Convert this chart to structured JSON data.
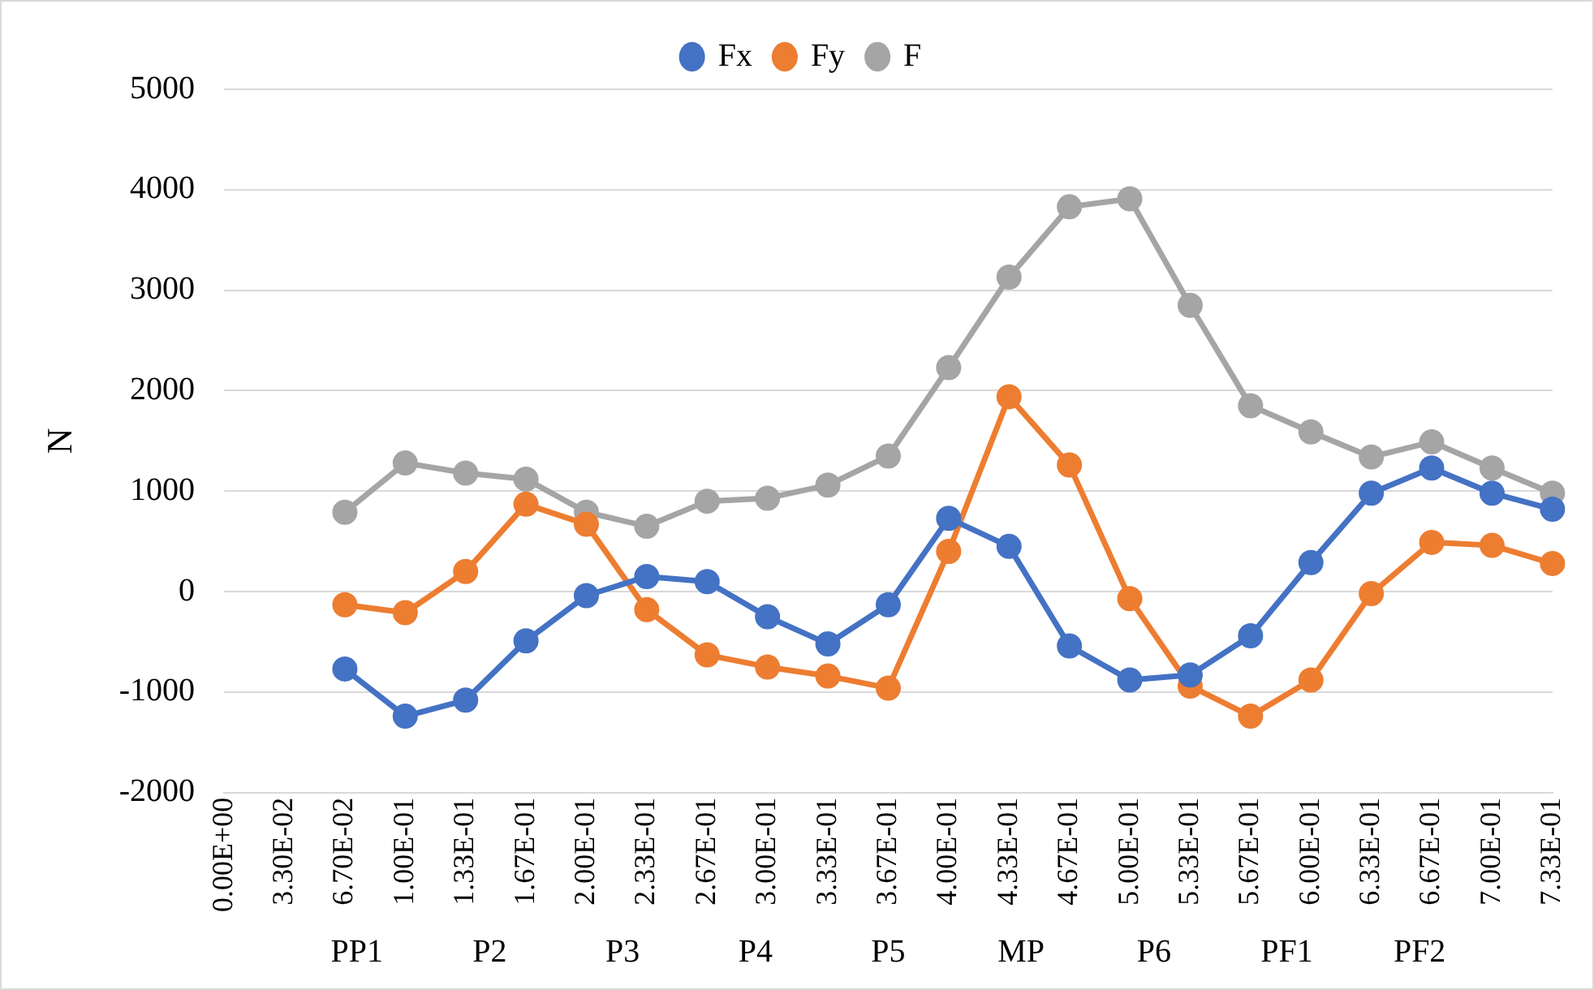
{
  "chart_data": {
    "type": "line",
    "ylabel": "N",
    "categories": [
      "0.00E+00",
      "3.30E-02",
      "6.70E-02",
      "1.00E-01",
      "1.33E-01",
      "1.67E-01",
      "2.00E-01",
      "2.33E-01",
      "2.67E-01",
      "3.00E-01",
      "3.33E-01",
      "3.67E-01",
      "4.00E-01",
      "4.33E-01",
      "4.67E-01",
      "5.00E-01",
      "5.33E-01",
      "5.67E-01",
      "6.00E-01",
      "6.33E-01",
      "6.67E-01",
      "7.00E-01",
      "7.33E-01"
    ],
    "series": [
      {
        "name": "Fx",
        "color": "#4472c4",
        "values": [
          null,
          null,
          -770,
          -1240,
          -1080,
          -490,
          -40,
          150,
          100,
          -250,
          -520,
          -130,
          730,
          450,
          -540,
          -880,
          -830,
          -440,
          290,
          980,
          1230,
          980,
          820
        ]
      },
      {
        "name": "Fy",
        "color": "#ed7d31",
        "values": [
          null,
          null,
          -130,
          -210,
          200,
          870,
          670,
          -180,
          -630,
          -750,
          -840,
          -960,
          400,
          1940,
          1260,
          -70,
          -940,
          -1240,
          -880,
          -20,
          490,
          460,
          280
        ]
      },
      {
        "name": "F",
        "color": "#a5a5a5",
        "values": [
          null,
          null,
          790,
          1280,
          1180,
          1120,
          790,
          650,
          900,
          930,
          1060,
          1350,
          2230,
          3130,
          3830,
          3910,
          2850,
          1850,
          1590,
          1340,
          1490,
          1230,
          980
        ]
      }
    ],
    "ylim": [
      -2000,
      5000
    ],
    "yticks": [
      -2000,
      -1000,
      0,
      1000,
      2000,
      3000,
      4000,
      5000
    ],
    "grid": "y",
    "legend": "top",
    "marker": "circle",
    "line_style": "solid",
    "annotations": [
      "PP1",
      "P2",
      "P3",
      "P4",
      "P5",
      "MP",
      "P6",
      "PF1",
      "PF2"
    ]
  }
}
